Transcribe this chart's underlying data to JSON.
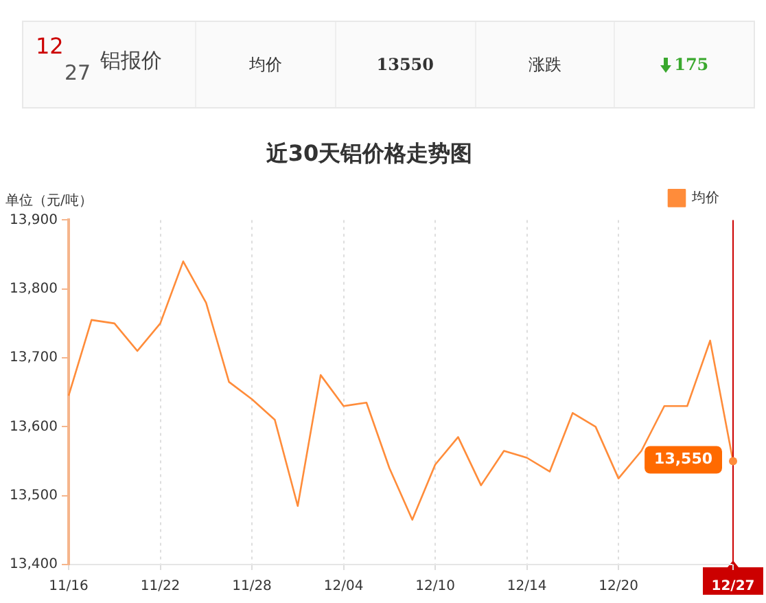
{
  "chart_data": {
    "type": "line",
    "title": "近30天铝价格走势图",
    "ylabel": "单位（元/吨）",
    "annotations": [
      "12",
      "27",
      "铝报价",
      "均价",
      "13550",
      "涨跌",
      "175",
      {
        "text": "13,550",
        "x": "12/27",
        "y": 13550
      }
    ],
    "categories": [
      "11/16",
      null,
      null,
      null,
      "11/22",
      null,
      null,
      null,
      "11/28",
      null,
      null,
      null,
      "12/04",
      null,
      null,
      null,
      "12/10",
      null,
      null,
      null,
      "12/14",
      null,
      null,
      null,
      "12/20",
      null,
      null,
      null,
      null,
      "12/27"
    ],
    "series": [
      {
        "name": "均价",
        "color": "#ff8c3a",
        "values": [
          13645,
          13755,
          13750,
          13710,
          13750,
          13840,
          13780,
          13665,
          13640,
          13610,
          13485,
          13675,
          13630,
          13635,
          13540,
          13465,
          13545,
          13585,
          13515,
          13565,
          13555,
          13535,
          13620,
          13600,
          13525,
          13565,
          13630,
          13630,
          13725,
          13550
        ]
      }
    ],
    "ylim": [
      13400,
      13900
    ],
    "yticks": [
      {
        "value": 13400,
        "label": "13,400"
      },
      {
        "value": 13500,
        "label": "13,500"
      },
      {
        "value": 13600,
        "label": "13,600"
      },
      {
        "value": 13700,
        "label": "13,700"
      },
      {
        "value": 13800,
        "label": "13,800"
      },
      {
        "value": 13900,
        "label": "13,900"
      }
    ],
    "ref_lines": [
      {
        "axis": "x",
        "value": "12/27",
        "color": "#cc0000"
      }
    ],
    "grid": "x",
    "legend": "top right",
    "marker": "none",
    "line_style": "solid"
  }
}
